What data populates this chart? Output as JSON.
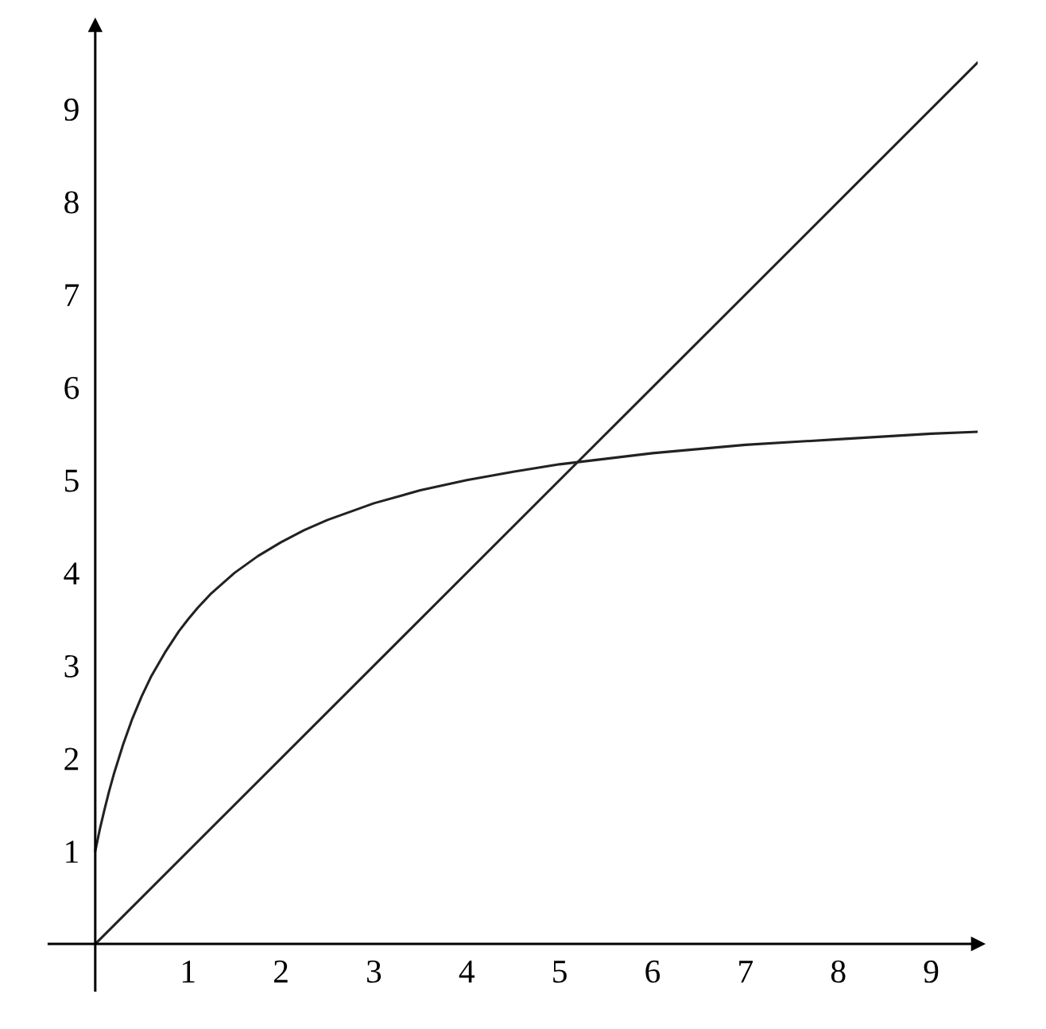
{
  "chart_data": {
    "type": "line",
    "series": [
      {
        "color": "#222222",
        "x": [
          0,
          9.5
        ],
        "values": [
          0,
          9.5
        ]
      },
      {
        "color": "#222222",
        "x": [
          0,
          0.05,
          0.1,
          0.15,
          0.2,
          0.3,
          0.4,
          0.5,
          0.6,
          0.75,
          0.9,
          1,
          1.1,
          1.25,
          1.5,
          1.75,
          2,
          2.25,
          2.5,
          3,
          3.5,
          4,
          4.5,
          5,
          5.5,
          6,
          7,
          8,
          9,
          9.5
        ],
        "values": [
          1,
          1.24,
          1.45,
          1.65,
          1.83,
          2.15,
          2.43,
          2.67,
          2.88,
          3.14,
          3.37,
          3.5,
          3.62,
          3.78,
          4.0,
          4.18,
          4.33,
          4.46,
          4.57,
          4.75,
          4.89,
          5.0,
          5.09,
          5.17,
          5.23,
          5.29,
          5.38,
          5.44,
          5.5,
          5.52
        ]
      }
    ],
    "xlim": [
      -0.5,
      9.5
    ],
    "ylim": [
      -0.5,
      9.9
    ],
    "xticks": [
      1,
      2,
      3,
      4,
      5,
      6,
      7,
      8,
      9
    ],
    "yticks": [
      1,
      2,
      3,
      4,
      5,
      6,
      7,
      8,
      9
    ],
    "grid": false,
    "line_style": "solid",
    "marker": "none"
  }
}
